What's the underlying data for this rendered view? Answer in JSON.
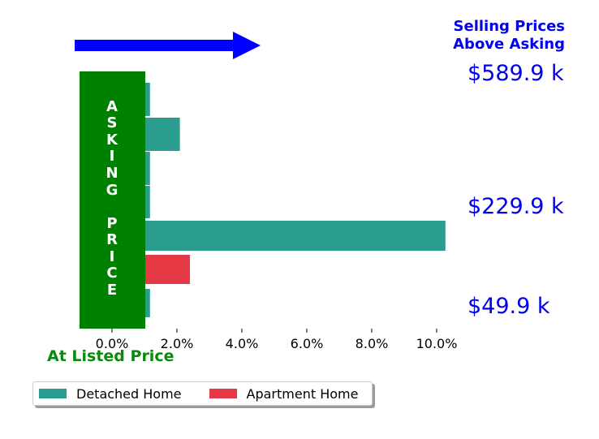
{
  "chart_data": {
    "type": "bar",
    "orientation": "horizontal",
    "xlim": [
      -0.01,
      0.105
    ],
    "x_ticks": [
      {
        "value": 0.0,
        "label": "0.0%"
      },
      {
        "value": 0.02,
        "label": "2.0%"
      },
      {
        "value": 0.04,
        "label": "4.0%"
      },
      {
        "value": 0.06,
        "label": "6.0%"
      },
      {
        "value": 0.08,
        "label": "8.0%"
      },
      {
        "value": 0.1,
        "label": "10.0%"
      }
    ],
    "bars": [
      {
        "series": "Detached Home",
        "value": 0.0117
      },
      {
        "series": "Detached Home",
        "value": 0.0209
      },
      {
        "series": "Detached Home",
        "value": 0.0117
      },
      {
        "series": "Detached Home",
        "value": 0.0117
      },
      {
        "series": "Detached Home",
        "value": 0.1027
      },
      {
        "series": "Apartment Home",
        "value": 0.024
      },
      {
        "series": "Detached Home",
        "value": 0.0117
      }
    ],
    "series": [
      {
        "name": "Detached Home",
        "color": "#2a9d8f"
      },
      {
        "name": "Apartment Home",
        "color": "#e63946"
      }
    ],
    "legend": {
      "placement": "bottom-left",
      "entries": [
        "Detached Home",
        "Apartment Home"
      ]
    },
    "annotations": {
      "above_asking": [
        "Selling Prices",
        "Above Asking"
      ],
      "asking_price_letters": [
        "A",
        "S",
        "K",
        "I",
        "N",
        "G",
        "",
        "P",
        "R",
        "I",
        "C",
        "E"
      ],
      "at_listed_price": "At Listed Price",
      "price_labels": [
        "$589.9 k",
        "$229.9 k",
        "$49.9 k"
      ]
    },
    "colors": {
      "arrow": "#0000ff",
      "asking_box": "#008000",
      "annotation_text": "#0000ee",
      "listed_text": "#0a8a0a"
    },
    "grid": false
  }
}
